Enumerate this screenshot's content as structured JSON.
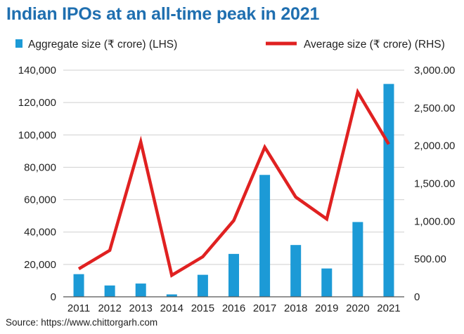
{
  "chart_data": {
    "type": "bar+line",
    "title": "Indian IPOs at an all-time peak in 2021",
    "categories": [
      "2011",
      "2012",
      "2013",
      "2014",
      "2015",
      "2016",
      "2017",
      "2018",
      "2019",
      "2020",
      "2021"
    ],
    "series": [
      {
        "name": "Aggregate size (₹ crore) (LHS)",
        "type": "bar",
        "axis": "left",
        "color": "#1c9ad6",
        "values": [
          14000,
          7000,
          8200,
          1500,
          13600,
          26500,
          75300,
          32000,
          17500,
          46200,
          131500
        ]
      },
      {
        "name": "Average size (₹ crore) (RHS)",
        "type": "line",
        "axis": "right",
        "color": "#e02121",
        "values": [
          370,
          615,
          2050,
          285,
          530,
          1010,
          1980,
          1320,
          1030,
          2710,
          2020
        ]
      }
    ],
    "y_left": {
      "range": [
        0,
        140000
      ],
      "ticks": [
        0,
        20000,
        40000,
        60000,
        80000,
        100000,
        120000,
        140000
      ],
      "tick_labels": [
        "0",
        "20,000",
        "40,000",
        "60,000",
        "80,000",
        "100,000",
        "120,000",
        "140,000"
      ]
    },
    "y_right": {
      "range": [
        0,
        3000
      ],
      "ticks": [
        0,
        500,
        1000,
        1500,
        2000,
        2500,
        3000
      ],
      "tick_labels": [
        "0",
        "500.00",
        "1,000.00",
        "1,500.00",
        "2,000.00",
        "2,500.00",
        "3,000.00"
      ]
    },
    "grid": true,
    "legend_position": "top",
    "source": "Source: https://www.chittorgarh.com"
  }
}
